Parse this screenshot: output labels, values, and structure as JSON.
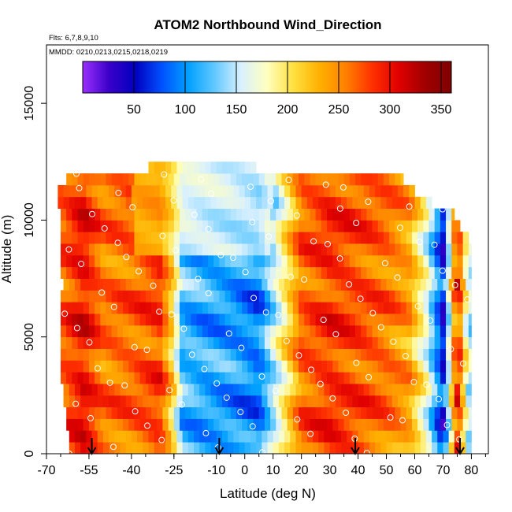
{
  "chart_data": {
    "type": "heatmap",
    "title": "ATOM2 Northbound Wind_Direction",
    "flights_note": "Flts: 6,7,8,9,10",
    "dates_note": "MMDD: 0210,0213,0215,0218,0219",
    "xlabel": "Latitude (deg N)",
    "ylabel": "Altitude (m)",
    "xlim": [
      -70,
      86
    ],
    "ylim": [
      0,
      17500
    ],
    "x_ticks": [
      -70,
      -55,
      -40,
      -25,
      -10,
      0,
      10,
      20,
      30,
      40,
      50,
      60,
      70,
      80
    ],
    "x_tick_labels": [
      "-70",
      "-55",
      "-40",
      "-25",
      "-10",
      "0",
      "10",
      "20",
      "30",
      "40",
      "50",
      "60",
      "70",
      "80"
    ],
    "y_ticks": [
      0,
      5000,
      10000,
      15000
    ],
    "y_tick_labels": [
      "0",
      "5000",
      "10000",
      "15000"
    ],
    "colorbar": {
      "min": 0,
      "max": 360,
      "ticks": [
        50,
        100,
        150,
        200,
        250,
        300,
        350
      ],
      "tick_labels": [
        "50",
        "100",
        "150",
        "200",
        "250",
        "300",
        "350"
      ],
      "colors": [
        "#9b30ff",
        "#3a00c8",
        "#0000c0",
        "#0050ff",
        "#00a0ff",
        "#60c8ff",
        "#d8f0ff",
        "#ffffc0",
        "#ffe040",
        "#ffb000",
        "#ff8000",
        "#ff3000",
        "#e00000",
        "#a00000",
        "#800000"
      ]
    },
    "altitude_bins_m": [
      0,
      500,
      1000,
      1500,
      2000,
      2500,
      3000,
      3500,
      4000,
      4500,
      5000,
      5500,
      6000,
      6500,
      7000,
      7500,
      8000,
      8500,
      9000,
      9500,
      10000,
      10500,
      11000,
      11500,
      12000
    ],
    "bin_lat_ranges": [
      [
        -62,
        80
      ],
      [
        -62,
        80
      ],
      [
        -63,
        80
      ],
      [
        -63,
        80
      ],
      [
        -64,
        80
      ],
      [
        -64,
        80
      ],
      [
        -65,
        80
      ],
      [
        -65,
        80
      ],
      [
        -65,
        80
      ],
      [
        -65,
        80
      ],
      [
        -65,
        80
      ],
      [
        -65,
        80
      ],
      [
        -65,
        80
      ],
      [
        -65,
        80
      ],
      [
        -64,
        80
      ],
      [
        -65,
        80
      ],
      [
        -65,
        80
      ],
      [
        -65,
        80
      ],
      [
        -65,
        79
      ],
      [
        -65,
        76
      ],
      [
        -65,
        74
      ],
      [
        -66,
        66
      ],
      [
        -66,
        60
      ],
      [
        -63,
        56
      ],
      [
        -34,
        4
      ]
    ],
    "transect_points": [
      {
        "lat": -64,
        "wind_direction_deg": 270
      },
      {
        "lat": -57,
        "wind_direction_deg": 300
      },
      {
        "lat": -50,
        "wind_direction_deg": 260
      },
      {
        "lat": -40,
        "wind_direction_deg": 265
      },
      {
        "lat": -30,
        "wind_direction_deg": 280
      },
      {
        "lat": -26,
        "wind_direction_deg": 220
      },
      {
        "lat": -22,
        "wind_direction_deg": 120
      },
      {
        "lat": -15,
        "wind_direction_deg": 110
      },
      {
        "lat": -5,
        "wind_direction_deg": 105
      },
      {
        "lat": 5,
        "wind_direction_deg": 90
      },
      {
        "lat": 12,
        "wind_direction_deg": 170
      },
      {
        "lat": 20,
        "wind_direction_deg": 265
      },
      {
        "lat": 30,
        "wind_direction_deg": 285
      },
      {
        "lat": 40,
        "wind_direction_deg": 275
      },
      {
        "lat": 50,
        "wind_direction_deg": 262
      },
      {
        "lat": 58,
        "wind_direction_deg": 240
      },
      {
        "lat": 64,
        "wind_direction_deg": 170
      },
      {
        "lat": 70,
        "wind_direction_deg": 60
      },
      {
        "lat": 75,
        "wind_direction_deg": 300
      },
      {
        "lat": 79,
        "wind_direction_deg": 150
      }
    ],
    "markers": {
      "arrow_latitudes": [
        -54,
        -9,
        39,
        76
      ]
    }
  }
}
